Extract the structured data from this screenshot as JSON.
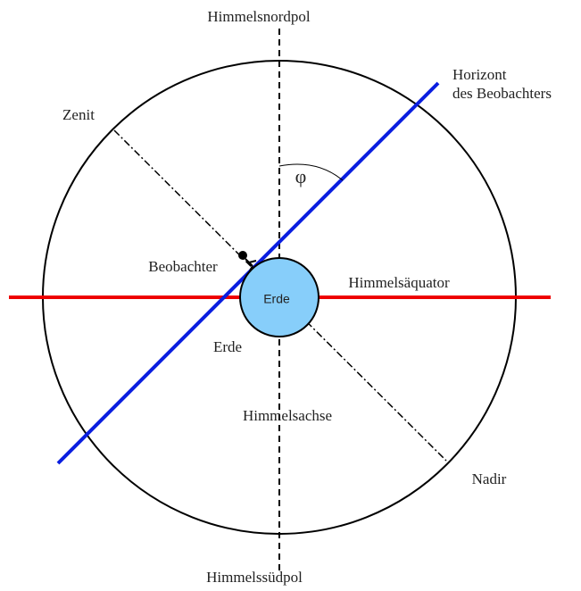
{
  "labels": {
    "north_pole": "Himmelsnordpol",
    "horizon_1": "Horizont",
    "horizon_2": "des Beobachters",
    "zenith": "Zenit",
    "phi": "φ",
    "observer": "Beobachter",
    "equator": "Himmelsäquator",
    "earth_inner": "Erde",
    "earth_outer": "Erde",
    "axis": "Himmelsachse",
    "nadir": "Nadir",
    "south_pole": "Himmelssüdpol"
  }
}
